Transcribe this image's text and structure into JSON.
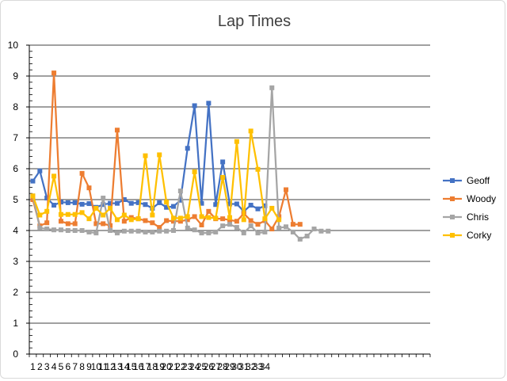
{
  "chart_data": {
    "type": "line",
    "title": "Lap Times",
    "xlabel": "",
    "ylabel": "",
    "ylim": [
      0,
      10
    ],
    "yticks": [
      0,
      1,
      2,
      3,
      4,
      5,
      6,
      7,
      8,
      9,
      10
    ],
    "x_tick_labels": [
      "1",
      "2",
      "3",
      "4",
      "5",
      "6",
      "7",
      "8",
      "9",
      "10",
      "11",
      "12",
      "13",
      "14",
      "15",
      "16",
      "17",
      "18",
      "19",
      "20",
      "21",
      "22",
      "23",
      "24",
      "25",
      "26",
      "27",
      "28",
      "29",
      "30",
      "31",
      "32",
      "33",
      "34"
    ],
    "x_count": 57,
    "grid": "horizontal",
    "legend_position": "right",
    "series": [
      {
        "name": "Geoff",
        "color": "#4472C4",
        "marker": "square",
        "values": [
          5.6,
          5.93,
          5.05,
          4.82,
          4.92,
          4.9,
          4.9,
          4.85,
          4.87,
          4.75,
          4.84,
          4.88,
          4.88,
          5.0,
          4.88,
          4.9,
          4.84,
          4.72,
          4.9,
          4.75,
          4.78,
          4.98,
          6.66,
          8.04,
          4.88,
          8.12,
          4.84,
          6.22,
          4.86,
          4.86,
          4.62,
          4.82,
          4.7,
          4.8
        ]
      },
      {
        "name": "Woody",
        "color": "#ED7D31",
        "marker": "square",
        "values": [
          5.0,
          4.15,
          4.25,
          9.1,
          4.3,
          4.22,
          4.22,
          5.85,
          5.38,
          4.22,
          4.22,
          4.16,
          7.25,
          4.3,
          4.42,
          4.38,
          4.32,
          4.25,
          4.1,
          4.32,
          4.3,
          4.3,
          4.35,
          4.45,
          4.18,
          4.62,
          4.38,
          4.38,
          4.34,
          4.3,
          4.55,
          4.32,
          4.2,
          4.32,
          4.05,
          4.45,
          5.32,
          4.2,
          4.2
        ]
      },
      {
        "name": "Chris",
        "color": "#A5A5A5",
        "marker": "square",
        "values": [
          5.12,
          4.08,
          4.05,
          4.02,
          4.02,
          4.0,
          4.0,
          4.0,
          3.95,
          3.92,
          5.05,
          4.0,
          3.92,
          3.98,
          3.98,
          3.98,
          3.95,
          3.95,
          3.98,
          3.98,
          4.0,
          5.28,
          4.08,
          4.02,
          3.92,
          3.92,
          3.95,
          4.15,
          4.2,
          4.1,
          3.92,
          4.15,
          3.92,
          3.95,
          8.62,
          4.08,
          4.12,
          3.95,
          3.72,
          3.82,
          4.05,
          3.98,
          3.98
        ]
      },
      {
        "name": "Corky",
        "color": "#FFC000",
        "marker": "square",
        "values": [
          5.12,
          4.5,
          4.62,
          5.76,
          4.52,
          4.52,
          4.52,
          4.58,
          4.38,
          4.72,
          4.5,
          4.72,
          4.35,
          4.5,
          4.35,
          4.38,
          6.42,
          4.5,
          6.45,
          4.92,
          4.4,
          4.4,
          4.45,
          5.9,
          4.45,
          4.42,
          4.4,
          5.72,
          4.42,
          6.88,
          4.35,
          7.22,
          5.98,
          4.38,
          4.72,
          4.35
        ]
      }
    ]
  }
}
